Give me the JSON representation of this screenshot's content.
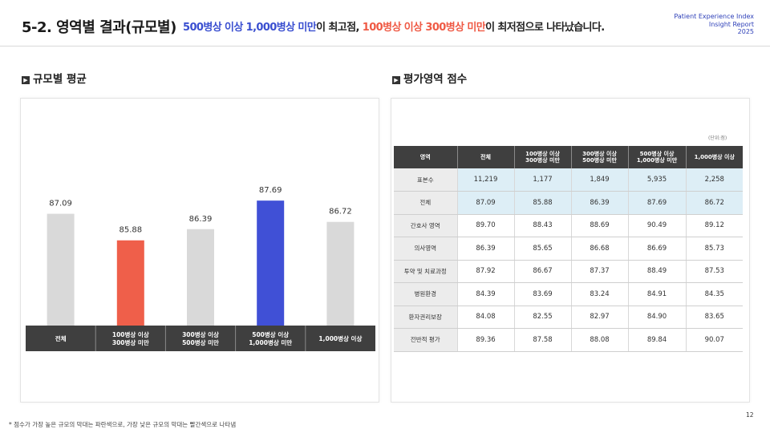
{
  "header": {
    "title": "5-2. 영역별 결과(규모별)",
    "subtitle_parts": [
      {
        "text": "500병상 이상 1,000병상 미만",
        "color": "blue"
      },
      {
        "text": "이 최고점, ",
        "color": "plain"
      },
      {
        "text": "100병상 이상 300병상 미만",
        "color": "red"
      },
      {
        "text": "이 최저점으로 나타났습니다.",
        "color": "plain"
      }
    ],
    "brand_lines": [
      "Patient Experience Index",
      "Insight Report",
      "2025"
    ]
  },
  "left_section": {
    "title": "규모별 평균",
    "marker": "▶"
  },
  "right_section": {
    "title": "평가영역 점수",
    "marker": "▶"
  },
  "colors": {
    "gray_bar": "#d9d9d9",
    "highlight_low": "#ef5f4a",
    "highlight_high": "#4050d6",
    "category_band": "#3f3f3f"
  },
  "chart_data": {
    "type": "bar",
    "categories": [
      "전체",
      "100병상 이상\n300병상 미만",
      "300병상 이상\n500병상 미만",
      "500병상 이상\n1,000병상 미만",
      "1,000병상 이상"
    ],
    "values": [
      87.09,
      85.88,
      86.39,
      87.69,
      86.72
    ],
    "value_labels": [
      "87.09",
      "85.88",
      "86.39",
      "87.69",
      "86.72"
    ],
    "bar_colors": [
      "#d9d9d9",
      "#ef5f4a",
      "#d9d9d9",
      "#4050d6",
      "#d9d9d9"
    ],
    "title": "",
    "xlabel": "",
    "ylabel": "",
    "ylim": [
      82,
      88.5
    ],
    "grid": false,
    "legend": "none"
  },
  "table": {
    "unit": "(단위:점)",
    "headers": [
      "영역",
      "전체",
      "100병상 이상\n300병상 미만",
      "300병상 이상\n500병상 미만",
      "500병상 이상\n1,000병상 미만",
      "1,000병상 이상"
    ],
    "rows": [
      {
        "label": "표본수",
        "values": [
          "11,219",
          "1,177",
          "1,849",
          "5,935",
          "2,258"
        ],
        "highlight": true
      },
      {
        "label": "전체",
        "values": [
          "87.09",
          "85.88",
          "86.39",
          "87.69",
          "86.72"
        ],
        "highlight": true
      },
      {
        "label": "간호사 영역",
        "values": [
          "89.70",
          "88.43",
          "88.69",
          "90.49",
          "89.12"
        ],
        "highlight": false
      },
      {
        "label": "의사영역",
        "values": [
          "86.39",
          "85.65",
          "86.68",
          "86.69",
          "85.73"
        ],
        "highlight": false
      },
      {
        "label": "투약 및 치료과정",
        "values": [
          "87.92",
          "86.67",
          "87.37",
          "88.49",
          "87.53"
        ],
        "highlight": false
      },
      {
        "label": "병원환경",
        "values": [
          "84.39",
          "83.69",
          "83.24",
          "84.91",
          "84.35"
        ],
        "highlight": false
      },
      {
        "label": "환자권리보장",
        "values": [
          "84.08",
          "82.55",
          "82.97",
          "84.90",
          "83.65"
        ],
        "highlight": false
      },
      {
        "label": "전반적 평가",
        "values": [
          "89.36",
          "87.58",
          "88.08",
          "89.84",
          "90.07"
        ],
        "highlight": false
      }
    ]
  },
  "footnote": "* 점수가 가장 높은 규모의 막대는 파란색으로, 가장 낮은 규모의 막대는 빨간색으로 나타냄",
  "page_number": "12"
}
